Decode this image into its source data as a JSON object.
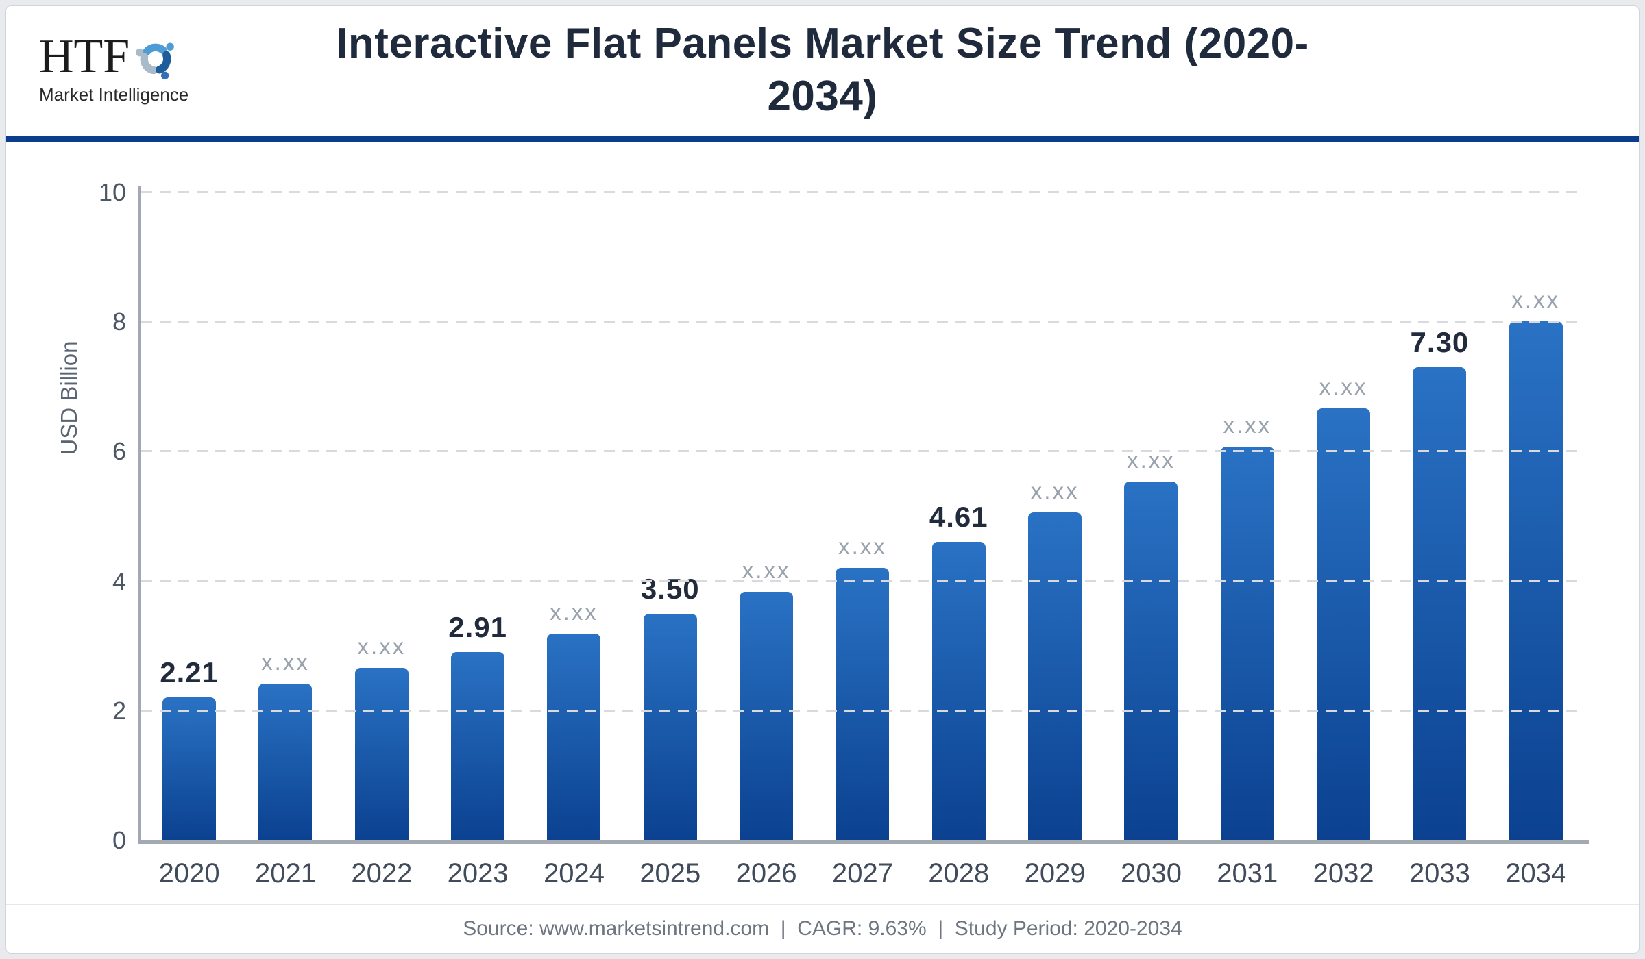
{
  "header": {
    "logo": {
      "acronym": "HTF",
      "subtitle": "Market Intelligence",
      "mark_colors": {
        "top_figure": "#4e9bd6",
        "left_figure": "#a9bac8",
        "right_figure": "#1e5d99",
        "dot": "#3070b5"
      }
    },
    "title_line1": "Interactive Flat Panels Market Size Trend (2020-",
    "title_line2": "2034)",
    "divider_color": "#0b3d8d"
  },
  "chart_data": {
    "type": "bar",
    "title": "Interactive Flat Panels Market Size Trend (2020-2034)",
    "xlabel": "",
    "ylabel": "USD Billion",
    "ylim": [
      0,
      10
    ],
    "yticks": [
      0,
      2,
      4,
      6,
      8,
      10
    ],
    "grid": "dashed horizontal gridlines",
    "legend": "none",
    "categories": [
      "2020",
      "2021",
      "2022",
      "2023",
      "2024",
      "2025",
      "2026",
      "2027",
      "2028",
      "2029",
      "2030",
      "2031",
      "2032",
      "2033",
      "2034"
    ],
    "values": [
      2.21,
      2.42,
      2.66,
      2.91,
      3.19,
      3.5,
      3.84,
      4.21,
      4.61,
      5.06,
      5.54,
      6.08,
      6.67,
      7.3,
      8.01
    ],
    "value_labels": [
      "2.21",
      "x.xx",
      "x.xx",
      "2.91",
      "x.xx",
      "3.50",
      "x.xx",
      "x.xx",
      "4.61",
      "x.xx",
      "x.xx",
      "x.xx",
      "x.xx",
      "7.30",
      "x.xx"
    ],
    "labeled_categories": [
      "2020",
      "2023",
      "2025",
      "2028",
      "2033"
    ],
    "colors": {
      "bar_top": "#2a72c4",
      "bar_bottom": "#0b4190"
    }
  },
  "footer": {
    "text": "Source: www.marketsintrend.com  |  CAGR: 9.63%  |  Study Period: 2020-2034"
  }
}
